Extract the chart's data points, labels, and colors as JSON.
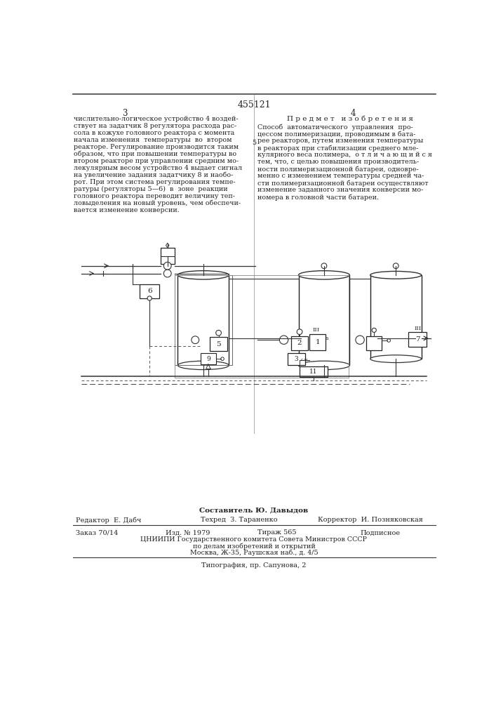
{
  "patent_number": "455121",
  "page_left": "3",
  "page_right": "4",
  "left_text": [
    "числительно-логическое устройство 4 воздей-",
    "ствует на задатчик 8 регулятора расхода рас-",
    "сола в кожухе головного реактора с момента",
    "начала изменения  температуры  во  втором",
    "реакторе. Регулирование производится таким",
    "образом, что при повышении температуры во",
    "втором реакторе при управлении средним мо-",
    "лекулярным весом устройство 4 выдает сигнал",
    "на увеличение задания задатчику 8 и наобо-",
    "рот. При этом система регулирования темпе-",
    "ратуры (регуляторы 5—6)  в  зоне  реакции",
    "головного реактора переводит величину теп-",
    "ловыделения на новый уровень, чем обеспечи-",
    "вается изменение конверсии."
  ],
  "right_heading": "П р е д м е т   и з о б р е т е н и я",
  "right_text": [
    "Способ  автоматического  управления  про-",
    "цессом полимеризации, проводимым в бата-",
    "рее реакторов, путем изменения температуры",
    "в реакторах при стабилизации среднего мле-",
    "кулярного веса полимера,  о т л и ч а ю щ и й с я",
    "тем, что, с целью повышения производитель-",
    "ности полимеризационной батареи, одновре-",
    "менно с изменением температуры средней ча-",
    "сти полимеризационной батареи осуществляют",
    "изменение заданного значения конверсии мо-",
    "номера в головной части батареи."
  ],
  "line_number": "5",
  "line_number_row": 3,
  "footer_composer": "Составитель Ю. Давыдов",
  "footer_editor": "Редактор  Е. Дабч",
  "footer_tech": "Техред  З. Тараненко",
  "footer_corrector": "Корректор  И. Позняковская",
  "footer_order": "Заказ 70/14",
  "footer_edition": "Изд. № 1979",
  "footer_circulation": "Тираж 565",
  "footer_subscription": "Подписное",
  "footer_cniipи": "ЦНИИПИ Государственного комитета Совета Министров СССР",
  "footer_affairs": "по делам изобретений и открытий",
  "footer_address": "Москва, Ж-35, Раушская наб., д. 4/5",
  "footer_typography": "Типография, пр. Сапунова, 2",
  "bg_color": "#ffffff",
  "text_color": "#222222",
  "line_color": "#444444"
}
